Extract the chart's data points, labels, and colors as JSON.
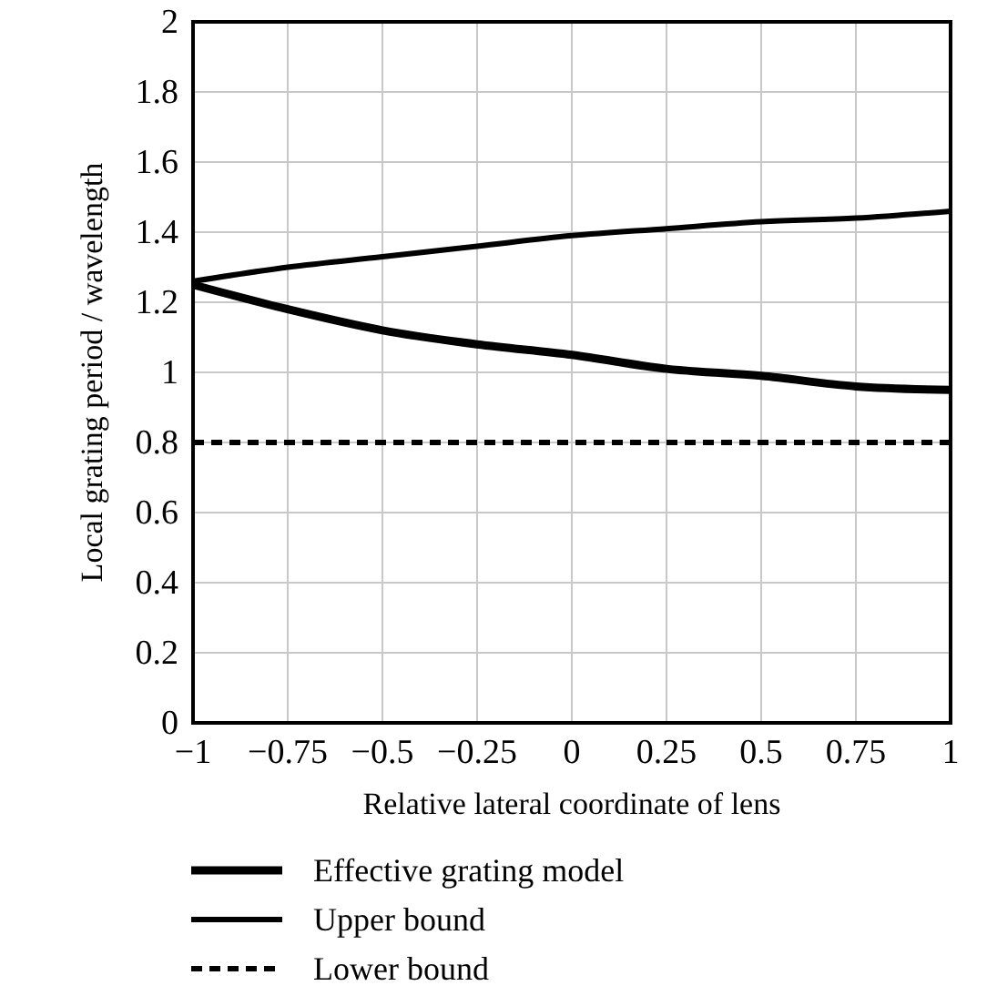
{
  "chart_data": {
    "type": "line",
    "xlabel": "Relative lateral coordinate of lens",
    "ylabel": "Local grating period / wavelength",
    "x": [
      -1,
      -0.75,
      -0.5,
      -0.25,
      0,
      0.25,
      0.5,
      0.75,
      1
    ],
    "series": [
      {
        "name": "Effective grating model",
        "color": "#000000",
        "line_style": "solid",
        "values": [
          1.25,
          1.18,
          1.12,
          1.08,
          1.05,
          1.01,
          0.99,
          0.96,
          0.95
        ]
      },
      {
        "name": "Upper bound",
        "color": "#000000",
        "line_style": "solid",
        "values": [
          1.26,
          1.3,
          1.33,
          1.36,
          1.39,
          1.41,
          1.43,
          1.44,
          1.46
        ]
      },
      {
        "name": "Lower bound",
        "color": "#000000",
        "line_style": "dashed",
        "values": [
          0.8,
          0.8,
          0.8,
          0.8,
          0.8,
          0.8,
          0.8,
          0.8,
          0.8
        ]
      }
    ],
    "xlim": [
      -1,
      1
    ],
    "xticks": [
      -1,
      -0.75,
      -0.5,
      -0.25,
      0,
      0.25,
      0.5,
      0.75,
      1
    ],
    "ylim": [
      0,
      2
    ],
    "yticks": [
      0,
      0.2,
      0.4,
      0.6,
      0.8,
      1,
      1.2,
      1.4,
      1.6,
      1.8,
      2
    ],
    "grid": true,
    "legend": "bottom",
    "marker": "none"
  }
}
